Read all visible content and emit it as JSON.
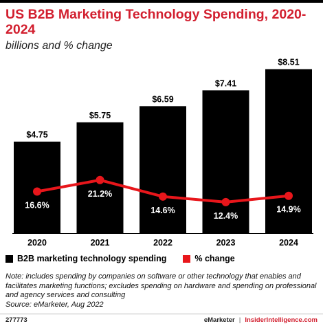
{
  "title": "US B2B Marketing Technology Spending, 2020-2024",
  "subtitle": "billions and % change",
  "chart_data": {
    "type": "bar",
    "categories": [
      "2020",
      "2021",
      "2022",
      "2023",
      "2024"
    ],
    "series": [
      {
        "name": "B2B marketing technology spending",
        "type": "bar",
        "values": [
          4.75,
          5.75,
          6.59,
          7.41,
          8.51
        ],
        "labels": [
          "$4.75",
          "$5.75",
          "$6.59",
          "$7.41",
          "$8.51"
        ],
        "color": "#000000"
      },
      {
        "name": "% change",
        "type": "line",
        "values": [
          16.6,
          21.2,
          14.6,
          12.4,
          14.9
        ],
        "labels": [
          "16.6%",
          "21.2%",
          "14.6%",
          "12.4%",
          "14.9%"
        ],
        "color": "#e8161b"
      }
    ],
    "ylim": [
      0,
      9.1
    ],
    "y2lim": [
      0,
      70
    ],
    "grid": false,
    "legend": "bottom-left"
  },
  "legend": [
    {
      "label": "B2B marketing technology spending",
      "color": "#000000"
    },
    {
      "label": "% change",
      "color": "#e8161b"
    }
  ],
  "note": "Note: includes spending by companies on software or other technology that enables and facilitates marketing functions; excludes spending on hardware and spending on professional and agency services and consulting",
  "source": "Source: eMarketer, Aug 2022",
  "footer": {
    "id": "277773",
    "brand": "eMarketer",
    "separator": "|",
    "site": "InsiderIntelligence.com"
  }
}
